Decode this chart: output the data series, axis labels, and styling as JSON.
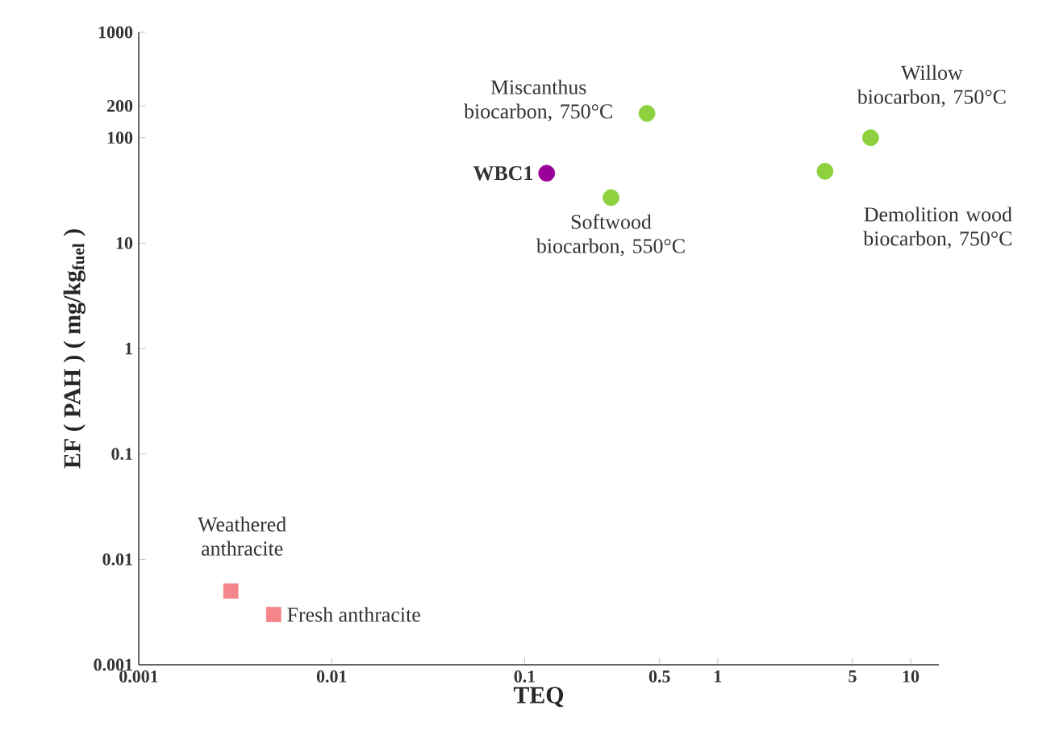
{
  "chart_data": {
    "type": "scatter",
    "xlabel": "TEQ",
    "ylabel": "EF ( PAH ) ( mg/kg$_{fuel}$ )",
    "log": "xy",
    "xlim": [
      0.001,
      14
    ],
    "ylim": [
      0.001,
      1000
    ],
    "xticks": [
      0.001,
      0.01,
      0.1,
      0.5,
      1,
      5,
      10
    ],
    "yticks": [
      0.001,
      0.01,
      0.1,
      1,
      10,
      100,
      200,
      1000
    ],
    "series": [
      {
        "color": "#8dd13f",
        "marker": "circle",
        "x": [
          0.43,
          0.28,
          6.2,
          3.6
        ],
        "values": [
          170,
          27,
          100,
          48
        ]
      },
      {
        "color": "#990099",
        "marker": "circle",
        "x": [
          0.13
        ],
        "values": [
          46
        ]
      },
      {
        "color": "#f4858a",
        "marker": "square",
        "x": [
          0.003,
          0.005
        ],
        "values": [
          0.005,
          0.003
        ]
      }
    ],
    "annotations": [
      {
        "text": "Miscanthus biocarbon, 750°C",
        "x": 0.43,
        "y": 170
      },
      {
        "text": "**WBC1**",
        "x": 0.13,
        "y": 46
      },
      {
        "text": "Softwood biocarbon, 550°C",
        "x": 0.28,
        "y": 27
      },
      {
        "text": "Willow biocarbon, 750°C",
        "x": 6.2,
        "y": 100
      },
      {
        "text": "Demolition wood biocarbon, 750°C",
        "x": 3.6,
        "y": 48
      },
      {
        "text": "Weathered anthracite",
        "x": 0.003,
        "y": 0.005
      },
      {
        "text": "Fresh anthracite",
        "x": 0.005,
        "y": 0.003
      }
    ]
  }
}
